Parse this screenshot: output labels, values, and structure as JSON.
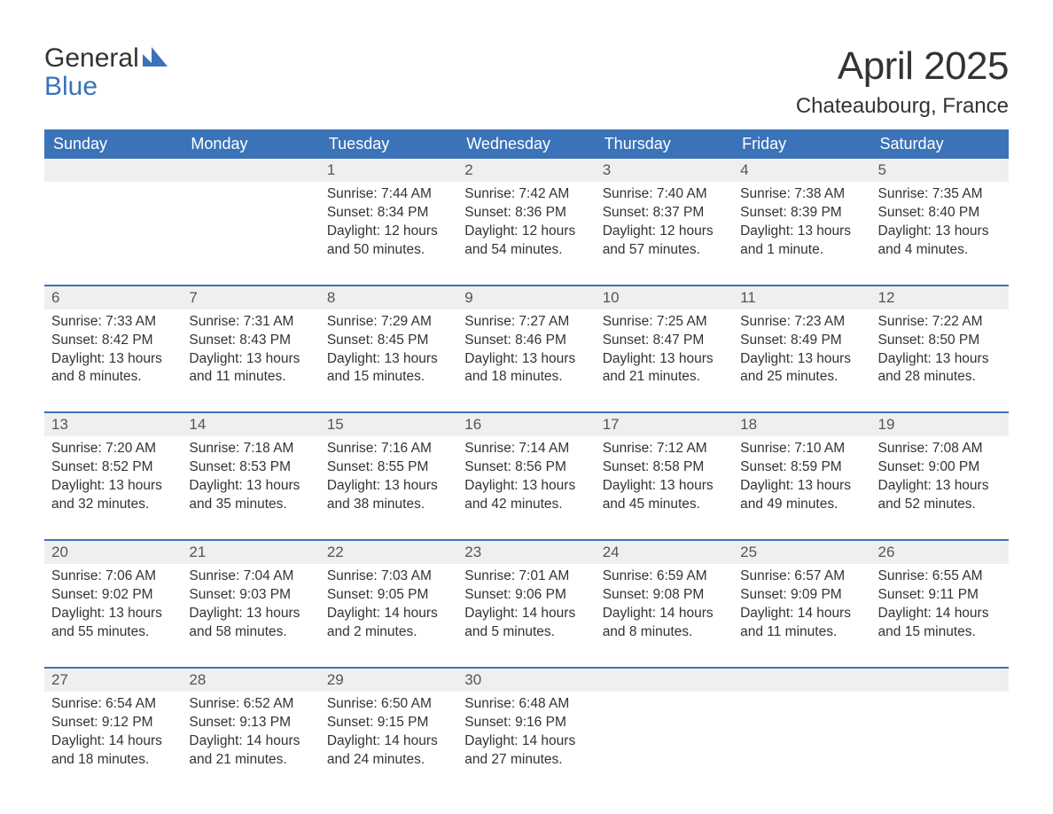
{
  "brand": {
    "word1": "General",
    "word2": "Blue"
  },
  "title": "April 2025",
  "location": "Chateaubourg, France",
  "colors": {
    "header_bg": "#3b73b9",
    "header_text": "#ffffff",
    "daynum_bg": "#efefef",
    "row_border": "#3b73b9",
    "text": "#333333",
    "brand_blue": "#3b73b9"
  },
  "day_headers": [
    "Sunday",
    "Monday",
    "Tuesday",
    "Wednesday",
    "Thursday",
    "Friday",
    "Saturday"
  ],
  "weeks": [
    [
      null,
      null,
      {
        "n": "1",
        "sr": "Sunrise: 7:44 AM",
        "ss": "Sunset: 8:34 PM",
        "dl": "Daylight: 12 hours and 50 minutes."
      },
      {
        "n": "2",
        "sr": "Sunrise: 7:42 AM",
        "ss": "Sunset: 8:36 PM",
        "dl": "Daylight: 12 hours and 54 minutes."
      },
      {
        "n": "3",
        "sr": "Sunrise: 7:40 AM",
        "ss": "Sunset: 8:37 PM",
        "dl": "Daylight: 12 hours and 57 minutes."
      },
      {
        "n": "4",
        "sr": "Sunrise: 7:38 AM",
        "ss": "Sunset: 8:39 PM",
        "dl": "Daylight: 13 hours and 1 minute."
      },
      {
        "n": "5",
        "sr": "Sunrise: 7:35 AM",
        "ss": "Sunset: 8:40 PM",
        "dl": "Daylight: 13 hours and 4 minutes."
      }
    ],
    [
      {
        "n": "6",
        "sr": "Sunrise: 7:33 AM",
        "ss": "Sunset: 8:42 PM",
        "dl": "Daylight: 13 hours and 8 minutes."
      },
      {
        "n": "7",
        "sr": "Sunrise: 7:31 AM",
        "ss": "Sunset: 8:43 PM",
        "dl": "Daylight: 13 hours and 11 minutes."
      },
      {
        "n": "8",
        "sr": "Sunrise: 7:29 AM",
        "ss": "Sunset: 8:45 PM",
        "dl": "Daylight: 13 hours and 15 minutes."
      },
      {
        "n": "9",
        "sr": "Sunrise: 7:27 AM",
        "ss": "Sunset: 8:46 PM",
        "dl": "Daylight: 13 hours and 18 minutes."
      },
      {
        "n": "10",
        "sr": "Sunrise: 7:25 AM",
        "ss": "Sunset: 8:47 PM",
        "dl": "Daylight: 13 hours and 21 minutes."
      },
      {
        "n": "11",
        "sr": "Sunrise: 7:23 AM",
        "ss": "Sunset: 8:49 PM",
        "dl": "Daylight: 13 hours and 25 minutes."
      },
      {
        "n": "12",
        "sr": "Sunrise: 7:22 AM",
        "ss": "Sunset: 8:50 PM",
        "dl": "Daylight: 13 hours and 28 minutes."
      }
    ],
    [
      {
        "n": "13",
        "sr": "Sunrise: 7:20 AM",
        "ss": "Sunset: 8:52 PM",
        "dl": "Daylight: 13 hours and 32 minutes."
      },
      {
        "n": "14",
        "sr": "Sunrise: 7:18 AM",
        "ss": "Sunset: 8:53 PM",
        "dl": "Daylight: 13 hours and 35 minutes."
      },
      {
        "n": "15",
        "sr": "Sunrise: 7:16 AM",
        "ss": "Sunset: 8:55 PM",
        "dl": "Daylight: 13 hours and 38 minutes."
      },
      {
        "n": "16",
        "sr": "Sunrise: 7:14 AM",
        "ss": "Sunset: 8:56 PM",
        "dl": "Daylight: 13 hours and 42 minutes."
      },
      {
        "n": "17",
        "sr": "Sunrise: 7:12 AM",
        "ss": "Sunset: 8:58 PM",
        "dl": "Daylight: 13 hours and 45 minutes."
      },
      {
        "n": "18",
        "sr": "Sunrise: 7:10 AM",
        "ss": "Sunset: 8:59 PM",
        "dl": "Daylight: 13 hours and 49 minutes."
      },
      {
        "n": "19",
        "sr": "Sunrise: 7:08 AM",
        "ss": "Sunset: 9:00 PM",
        "dl": "Daylight: 13 hours and 52 minutes."
      }
    ],
    [
      {
        "n": "20",
        "sr": "Sunrise: 7:06 AM",
        "ss": "Sunset: 9:02 PM",
        "dl": "Daylight: 13 hours and 55 minutes."
      },
      {
        "n": "21",
        "sr": "Sunrise: 7:04 AM",
        "ss": "Sunset: 9:03 PM",
        "dl": "Daylight: 13 hours and 58 minutes."
      },
      {
        "n": "22",
        "sr": "Sunrise: 7:03 AM",
        "ss": "Sunset: 9:05 PM",
        "dl": "Daylight: 14 hours and 2 minutes."
      },
      {
        "n": "23",
        "sr": "Sunrise: 7:01 AM",
        "ss": "Sunset: 9:06 PM",
        "dl": "Daylight: 14 hours and 5 minutes."
      },
      {
        "n": "24",
        "sr": "Sunrise: 6:59 AM",
        "ss": "Sunset: 9:08 PM",
        "dl": "Daylight: 14 hours and 8 minutes."
      },
      {
        "n": "25",
        "sr": "Sunrise: 6:57 AM",
        "ss": "Sunset: 9:09 PM",
        "dl": "Daylight: 14 hours and 11 minutes."
      },
      {
        "n": "26",
        "sr": "Sunrise: 6:55 AM",
        "ss": "Sunset: 9:11 PM",
        "dl": "Daylight: 14 hours and 15 minutes."
      }
    ],
    [
      {
        "n": "27",
        "sr": "Sunrise: 6:54 AM",
        "ss": "Sunset: 9:12 PM",
        "dl": "Daylight: 14 hours and 18 minutes."
      },
      {
        "n": "28",
        "sr": "Sunrise: 6:52 AM",
        "ss": "Sunset: 9:13 PM",
        "dl": "Daylight: 14 hours and 21 minutes."
      },
      {
        "n": "29",
        "sr": "Sunrise: 6:50 AM",
        "ss": "Sunset: 9:15 PM",
        "dl": "Daylight: 14 hours and 24 minutes."
      },
      {
        "n": "30",
        "sr": "Sunrise: 6:48 AM",
        "ss": "Sunset: 9:16 PM",
        "dl": "Daylight: 14 hours and 27 minutes."
      },
      null,
      null,
      null
    ]
  ]
}
